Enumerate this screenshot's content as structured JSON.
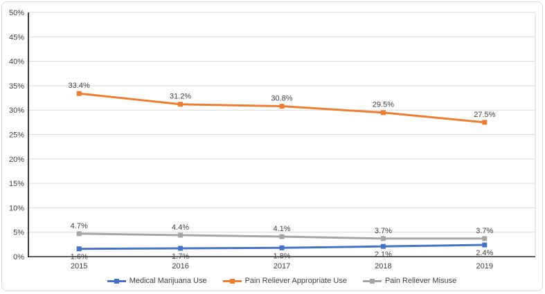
{
  "colors": {
    "series_blue": "#4472C4",
    "series_orange": "#ED7D31",
    "series_gray": "#A5A5A5",
    "gridline": "#D9D9D9",
    "axis_line": "#262626",
    "label_text": "#404040",
    "card_border": "#D9D9D9",
    "background": "#FFFFFF"
  },
  "chart_data": {
    "type": "line",
    "title": "",
    "xlabel": "",
    "ylabel": "",
    "categories": [
      "2015",
      "2016",
      "2017",
      "2018",
      "2019"
    ],
    "series": [
      {
        "name": "Medical Marijuana Use",
        "color": "#4472C4",
        "values": [
          1.6,
          1.7,
          1.8,
          2.1,
          2.4
        ],
        "data_labels": [
          "1.6%",
          "1.7%",
          "1.8%",
          "2.1%",
          "2.4%"
        ],
        "label_position": "below",
        "marker": "square"
      },
      {
        "name": "Pain Reliever Appropriate Use",
        "color": "#ED7D31",
        "values": [
          33.4,
          31.2,
          30.8,
          29.5,
          27.5
        ],
        "data_labels": [
          "33.4%",
          "31.2%",
          "30.8%",
          "29.5%",
          "27.5%"
        ],
        "label_position": "above",
        "marker": "square"
      },
      {
        "name": "Pain Reliever Misuse",
        "color": "#A5A5A5",
        "values": [
          4.7,
          4.4,
          4.1,
          3.7,
          3.7
        ],
        "data_labels": [
          "4.7%",
          "4.4%",
          "4.1%",
          "3.7%",
          "3.7%"
        ],
        "label_position": "above",
        "marker": "square"
      }
    ],
    "y_axis": {
      "min": 0,
      "max": 50,
      "step": 5,
      "tick_suffix": "%",
      "tick_labels": [
        "0%",
        "5%",
        "10%",
        "15%",
        "20%",
        "25%",
        "30%",
        "35%",
        "40%",
        "45%",
        "50%"
      ]
    },
    "grid": true,
    "legend_position": "bottom"
  }
}
